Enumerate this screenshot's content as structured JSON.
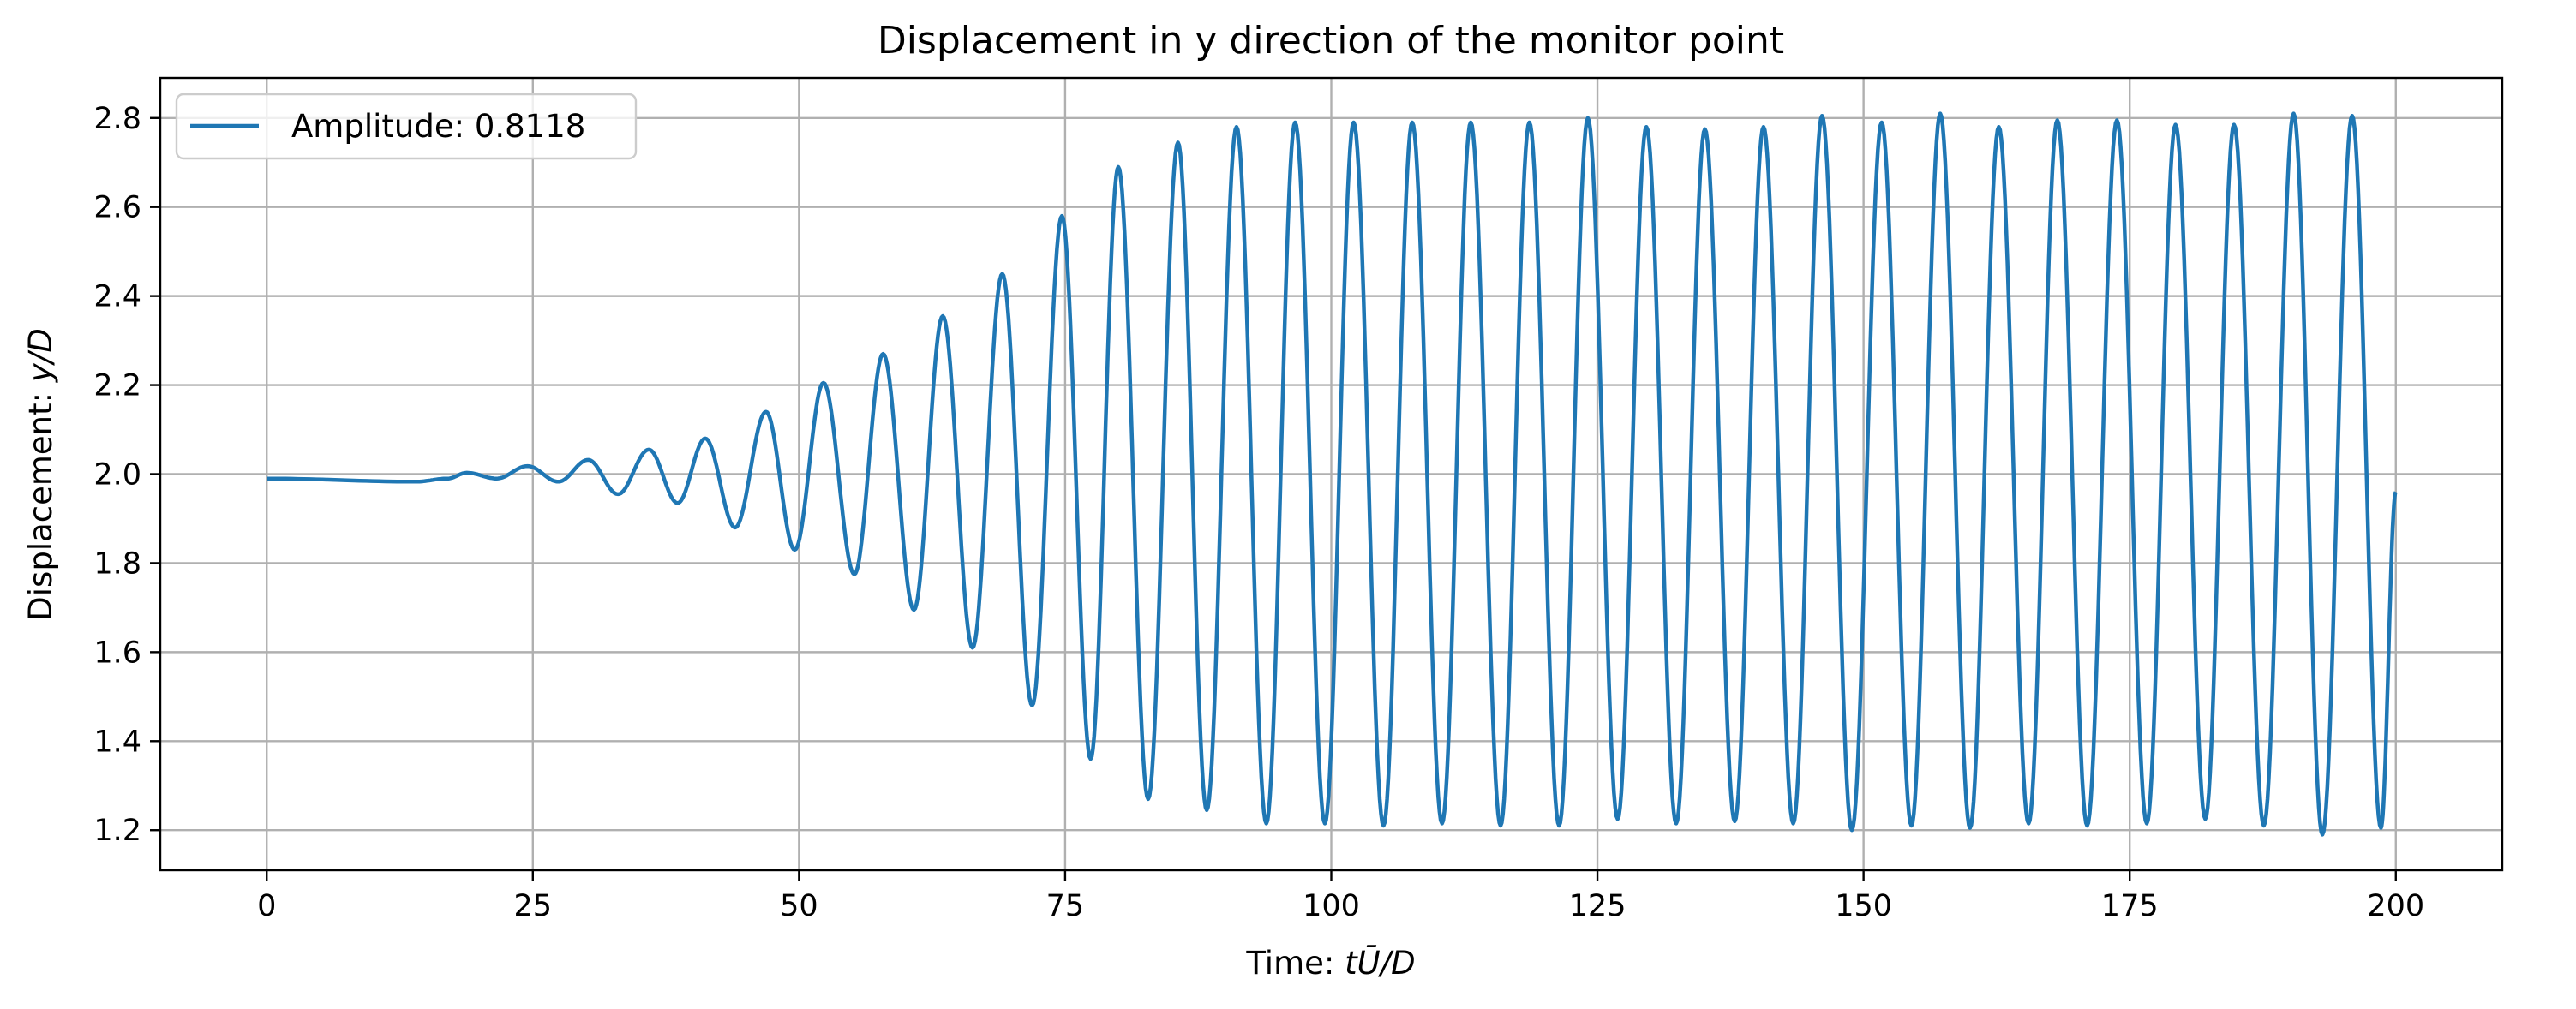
{
  "chart_data": {
    "type": "line",
    "title": "Displacement in y direction of the monitor point",
    "xlabel_prefix": "Time: ",
    "xlabel_math": "tŪ/D",
    "ylabel_prefix": "Displacement: ",
    "ylabel_math": "y/D",
    "xlim": [
      -10,
      210
    ],
    "ylim": [
      1.11,
      2.89
    ],
    "xticks": [
      0,
      25,
      50,
      75,
      100,
      125,
      150,
      175,
      200
    ],
    "xtick_labels": [
      "0",
      "25",
      "50",
      "75",
      "100",
      "125",
      "150",
      "175",
      "200"
    ],
    "yticks": [
      1.2,
      1.4,
      1.6,
      1.8,
      2.0,
      2.2,
      2.4,
      2.6,
      2.8
    ],
    "ytick_labels": [
      "1.2",
      "1.4",
      "1.6",
      "1.8",
      "2.0",
      "2.2",
      "2.4",
      "2.6",
      "2.8"
    ],
    "grid": true,
    "legend_position": "top-left",
    "series": [
      {
        "name": "Amplitude: 0.8118",
        "color": "#1f77b4",
        "x_start": 0,
        "x_end": 200,
        "baseline": 1.99,
        "end_value": 1.96,
        "peaks": [
          [
            18.8,
            2.003
          ],
          [
            24.5,
            2.018
          ],
          [
            30.2,
            2.032
          ],
          [
            35.9,
            2.055
          ],
          [
            41.2,
            2.08
          ],
          [
            46.9,
            2.14
          ],
          [
            52.3,
            2.205
          ],
          [
            57.9,
            2.27
          ],
          [
            63.5,
            2.355
          ],
          [
            69.1,
            2.45
          ],
          [
            74.7,
            2.58
          ],
          [
            80.0,
            2.69
          ],
          [
            85.6,
            2.745
          ],
          [
            91.1,
            2.78
          ],
          [
            96.6,
            2.79
          ],
          [
            102.1,
            2.79
          ],
          [
            107.6,
            2.79
          ],
          [
            113.1,
            2.79
          ],
          [
            118.6,
            2.79
          ],
          [
            124.1,
            2.8
          ],
          [
            129.6,
            2.78
          ],
          [
            135.1,
            2.775
          ],
          [
            140.6,
            2.78
          ],
          [
            146.1,
            2.805
          ],
          [
            151.7,
            2.79
          ],
          [
            157.2,
            2.81
          ],
          [
            162.7,
            2.78
          ],
          [
            168.2,
            2.795
          ],
          [
            173.8,
            2.795
          ],
          [
            179.3,
            2.785
          ],
          [
            184.8,
            2.785
          ],
          [
            190.4,
            2.81
          ],
          [
            195.9,
            2.805
          ]
        ],
        "troughs": [
          [
            21.6,
            1.99
          ],
          [
            27.4,
            1.983
          ],
          [
            33.0,
            1.955
          ],
          [
            38.6,
            1.935
          ],
          [
            44.0,
            1.88
          ],
          [
            49.6,
            1.83
          ],
          [
            55.2,
            1.775
          ],
          [
            60.8,
            1.695
          ],
          [
            66.3,
            1.61
          ],
          [
            71.9,
            1.48
          ],
          [
            77.4,
            1.36
          ],
          [
            82.8,
            1.27
          ],
          [
            88.3,
            1.245
          ],
          [
            93.9,
            1.215
          ],
          [
            99.4,
            1.215
          ],
          [
            104.9,
            1.21
          ],
          [
            110.4,
            1.215
          ],
          [
            115.9,
            1.21
          ],
          [
            121.4,
            1.21
          ],
          [
            126.9,
            1.225
          ],
          [
            132.4,
            1.215
          ],
          [
            137.9,
            1.22
          ],
          [
            143.4,
            1.215
          ],
          [
            148.9,
            1.2
          ],
          [
            154.5,
            1.21
          ],
          [
            160.0,
            1.205
          ],
          [
            165.5,
            1.215
          ],
          [
            171.0,
            1.21
          ],
          [
            176.6,
            1.215
          ],
          [
            182.1,
            1.225
          ],
          [
            187.6,
            1.21
          ],
          [
            193.1,
            1.19
          ],
          [
            198.6,
            1.205
          ]
        ]
      }
    ]
  }
}
